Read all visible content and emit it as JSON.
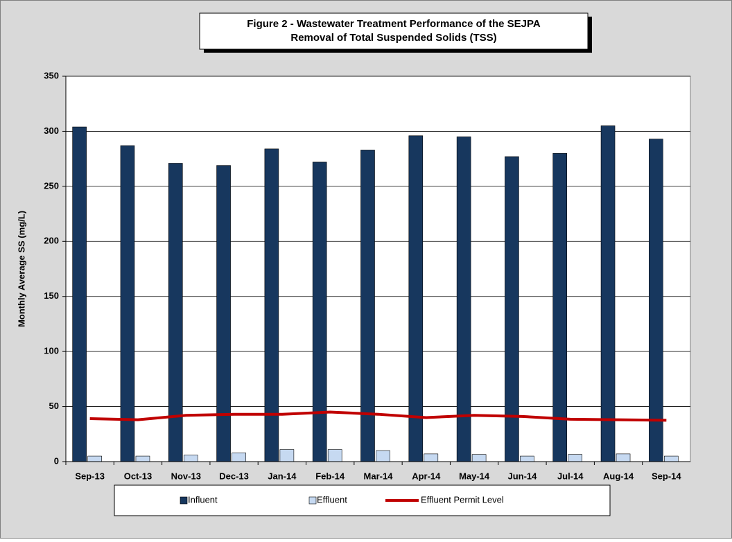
{
  "chart_data": {
    "type": "bar",
    "title": "Figure 2 - Wastewater Treatment Performance of the SEJPA",
    "subtitle": "Removal of Total Suspended Solids (TSS)",
    "y_label": "Monthly Average SS (mg/L)",
    "categories": [
      "Sep-13",
      "Oct-13",
      "Nov-13",
      "Dec-13",
      "Jan-14",
      "Feb-14",
      "Mar-14",
      "Apr-14",
      "May-14",
      "Jun-14",
      "Jul-14",
      "Aug-14",
      "Sep-14"
    ],
    "series": [
      {
        "name": "Influent",
        "type": "bar",
        "color": "#17375e",
        "values": [
          304,
          287,
          271,
          269,
          284,
          272,
          283,
          296,
          295,
          277,
          280,
          305,
          293
        ]
      },
      {
        "name": "Effluent",
        "type": "bar",
        "color": "#c6d9f1",
        "values": [
          5,
          5,
          6,
          8,
          11,
          11,
          10,
          7,
          6.5,
          5,
          6.5,
          7,
          5
        ]
      },
      {
        "name": "Effluent Permit Level",
        "type": "line",
        "color": "#c00000",
        "values": [
          39,
          38,
          42,
          43,
          43,
          45,
          43,
          40,
          42,
          41,
          38.5,
          38,
          37.5
        ]
      }
    ],
    "ylim": [
      0,
      350
    ],
    "yticks": [
      0,
      50,
      100,
      150,
      200,
      250,
      300,
      350
    ],
    "grid": true,
    "legend": "bottom"
  }
}
